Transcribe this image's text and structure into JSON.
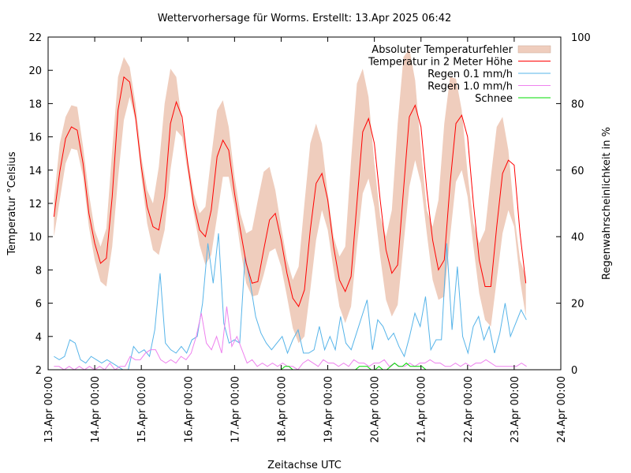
{
  "chart_data": {
    "type": "line",
    "title": "Wettervorhersage für Worms. Erstellt: 13.Apr 2025 06:42",
    "xlabel": "Zeitachse UTC",
    "ylabel": "Temperatur °Celsius",
    "y2label": "Regenwahrscheinlichkeit in %",
    "ylim": [
      2,
      22
    ],
    "y2lim": [
      0,
      100
    ],
    "yticks": [
      "2",
      "4",
      "6",
      "8",
      "10",
      "12",
      "14",
      "16",
      "18",
      "20",
      "22"
    ],
    "y2ticks": [
      "0",
      "20",
      "40",
      "60",
      "80",
      "100"
    ],
    "xlim_days": [
      0,
      11
    ],
    "xticks": [
      "13.Apr 00:00",
      "14.Apr 00:00",
      "15.Apr 00:00",
      "16.Apr 00:00",
      "17.Apr 00:00",
      "18.Apr 00:00",
      "19.Apr 00:00",
      "20.Apr 00:00",
      "21.Apr 00:00",
      "22.Apr 00:00",
      "23.Apr 00:00",
      "24.Apr 00:00"
    ],
    "legend_position": "top-right",
    "x_start_days": 0.125,
    "x_step_days": 0.125,
    "series": [
      {
        "name": "Absoluter Temperaturfehler",
        "kind": "band",
        "color": "#efcdbd",
        "lower": [
          10.0,
          12.2,
          14.4,
          15.3,
          15.2,
          13.6,
          10.6,
          8.6,
          7.3,
          7.0,
          9.4,
          13.5,
          17.0,
          18.4,
          17.0,
          13.6,
          10.8,
          9.2,
          8.9,
          10.4,
          14.0,
          16.4,
          16.0,
          13.8,
          11.4,
          9.5,
          8.3,
          8.9,
          11.2,
          13.6,
          13.6,
          11.8,
          9.3,
          7.2,
          6.4,
          6.5,
          7.7,
          9.1,
          9.3,
          8.2,
          6.4,
          4.5,
          3.6,
          4.0,
          6.8,
          9.8,
          11.6,
          10.4,
          8.0,
          5.8,
          4.8,
          5.8,
          9.4,
          12.6,
          13.5,
          11.8,
          8.8,
          6.2,
          5.2,
          5.9,
          9.5,
          13.0,
          14.6,
          13.2,
          10.2,
          7.4,
          6.2,
          6.4,
          10.0,
          13.3,
          14.0,
          12.4,
          9.4,
          6.6,
          5.0,
          4.6,
          7.4,
          10.2,
          11.6,
          10.6,
          7.4,
          5.2
        ],
        "upper": [
          12.2,
          15.6,
          17.2,
          17.9,
          17.8,
          15.4,
          12.6,
          10.4,
          9.4,
          10.5,
          15.2,
          19.6,
          20.8,
          20.2,
          18.0,
          14.8,
          12.8,
          12.0,
          14.2,
          18.0,
          20.1,
          19.6,
          16.8,
          14.6,
          12.6,
          11.4,
          11.8,
          14.8,
          17.6,
          18.2,
          16.6,
          13.6,
          11.4,
          10.2,
          10.4,
          12.2,
          13.9,
          14.2,
          12.8,
          10.6,
          8.6,
          7.4,
          8.2,
          12.0,
          15.6,
          16.8,
          15.6,
          12.6,
          10.0,
          8.8,
          9.4,
          14.6,
          19.2,
          20.1,
          18.4,
          14.4,
          11.2,
          10.0,
          11.6,
          16.8,
          20.8,
          21.3,
          19.4,
          15.2,
          11.6,
          10.6,
          12.2,
          16.8,
          19.6,
          19.5,
          17.6,
          13.8,
          10.8,
          9.6,
          10.4,
          13.6,
          16.6,
          17.2,
          15.2,
          11.4,
          8.6,
          7.6
        ]
      },
      {
        "name": "Temperatur in 2 Meter Höhe",
        "kind": "line",
        "color": "#ff0000",
        "values": [
          11.2,
          13.9,
          15.9,
          16.6,
          16.4,
          14.4,
          11.4,
          9.6,
          8.4,
          8.7,
          12.4,
          17.6,
          19.6,
          19.3,
          17.2,
          14.2,
          11.8,
          10.6,
          10.4,
          12.4,
          16.8,
          18.1,
          17.2,
          14.3,
          11.9,
          10.4,
          10.0,
          11.6,
          14.8,
          15.8,
          15.2,
          12.6,
          10.4,
          8.4,
          7.2,
          7.3,
          9.2,
          11.0,
          11.4,
          9.8,
          7.8,
          6.3,
          5.8,
          6.8,
          10.4,
          13.2,
          13.8,
          12.2,
          9.4,
          7.4,
          6.7,
          7.6,
          12.0,
          16.3,
          17.1,
          15.6,
          12.2,
          9.2,
          7.8,
          8.3,
          12.8,
          17.2,
          17.9,
          16.6,
          12.8,
          9.8,
          8.0,
          8.6,
          13.2,
          16.8,
          17.3,
          16.0,
          12.0,
          8.6,
          7.0,
          7.0,
          10.6,
          13.8,
          14.6,
          14.3,
          10.2,
          7.2
        ]
      },
      {
        "name": "Regen 0.1 mm/h",
        "kind": "line",
        "color": "#56b4e9",
        "axis": "y2",
        "values": [
          4,
          3,
          4,
          9,
          8,
          3,
          2,
          4,
          3,
          2,
          3,
          2,
          1,
          0,
          0,
          7,
          5,
          6,
          4,
          12,
          29,
          8,
          6,
          5,
          7,
          5,
          9,
          10,
          20,
          38,
          26,
          41,
          14,
          8,
          9,
          8,
          34,
          26,
          16,
          11,
          8,
          6,
          8,
          10,
          5,
          9,
          12,
          5,
          5,
          6,
          13,
          6,
          10,
          6,
          16,
          8,
          6,
          11,
          16,
          21,
          6,
          15,
          13,
          9,
          11,
          7,
          4,
          10,
          17,
          13,
          22,
          6,
          9,
          9,
          38,
          12,
          31,
          10,
          5,
          13,
          16,
          9,
          13,
          5,
          11,
          20,
          10,
          14,
          18,
          15
        ]
      },
      {
        "name": "Regen 1.0 mm/h",
        "kind": "line",
        "color": "#ee82ee",
        "axis": "y2",
        "values": [
          1,
          1,
          0,
          1,
          0,
          1,
          0,
          1,
          0,
          1,
          0,
          2,
          0,
          1,
          1,
          4,
          3,
          3,
          5,
          6,
          6,
          3,
          2,
          3,
          2,
          4,
          3,
          5,
          10,
          17,
          8,
          6,
          10,
          5,
          19,
          7,
          10,
          6,
          2,
          3,
          1,
          2,
          1,
          2,
          1,
          2,
          1,
          1,
          0,
          2,
          3,
          2,
          1,
          3,
          2,
          2,
          1,
          2,
          1,
          3,
          2,
          2,
          1,
          2,
          2,
          3,
          1,
          2,
          1,
          1,
          2,
          1,
          2,
          2,
          3,
          2,
          2,
          1,
          1,
          2,
          1,
          2,
          1,
          2,
          2,
          3,
          2,
          1,
          1,
          1,
          1,
          1,
          2,
          1
        ]
      },
      {
        "name": "Schnee",
        "kind": "line",
        "color": "#00dd00",
        "axis": "y2",
        "values": [
          0,
          0,
          0,
          0,
          0,
          0,
          0,
          0,
          0,
          0,
          0,
          0,
          0,
          0,
          0,
          0,
          0,
          0,
          0,
          0,
          0,
          0,
          0,
          0,
          0,
          0,
          0,
          0,
          0,
          0,
          0,
          0,
          0,
          0,
          0,
          0,
          0,
          0,
          0,
          0,
          0,
          0,
          0,
          0,
          0,
          0,
          0,
          0,
          0,
          0,
          0,
          0,
          0,
          0,
          0,
          0,
          0,
          0,
          0,
          1,
          1,
          0,
          0,
          0,
          0,
          0,
          0,
          0,
          0,
          0,
          0,
          0,
          0,
          0,
          0,
          0,
          0,
          0,
          1,
          1,
          1,
          0,
          0,
          1,
          0,
          0,
          1,
          2,
          1,
          1,
          2,
          1,
          1,
          1,
          1,
          0,
          0,
          0,
          0,
          0,
          0,
          0,
          0,
          0,
          0,
          0,
          0,
          0,
          0,
          0,
          0,
          0,
          0,
          0,
          0,
          0,
          0,
          0,
          0,
          0,
          0,
          0
        ]
      }
    ]
  }
}
